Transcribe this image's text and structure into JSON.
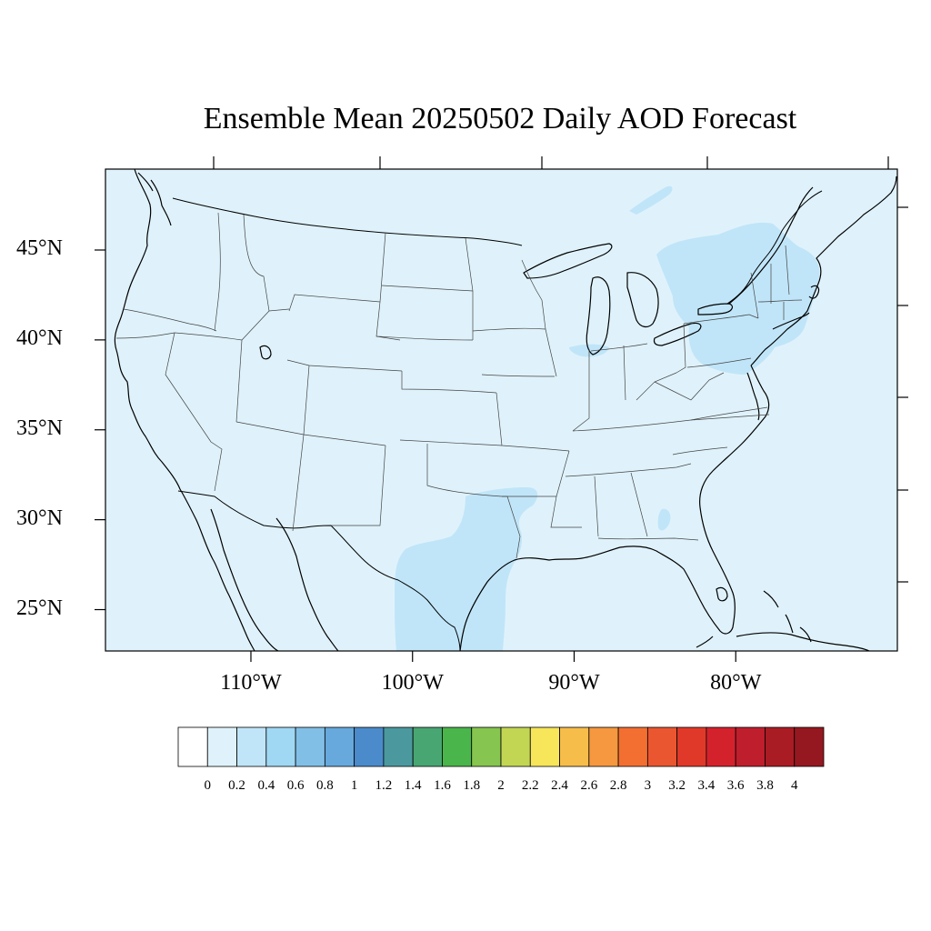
{
  "title": "Ensemble Mean 20250502 Daily AOD Forecast",
  "map": {
    "region": "Contiguous United States",
    "lon_range": [
      -119,
      -70
    ],
    "lat_range": [
      22.7,
      49.5
    ],
    "lat_labels": [
      "45°N",
      "40°N",
      "35°N",
      "30°N",
      "25°N"
    ],
    "lat_values": [
      45,
      40,
      35,
      30,
      25
    ],
    "lon_labels": [
      "110°W",
      "100°W",
      "90°W",
      "80°W"
    ],
    "lon_values": [
      -110,
      -100,
      -90,
      -80
    ],
    "background_color": "#dff2fb",
    "ocean_color": "#dff2fb",
    "enhanced_color": "#c0e5f8",
    "coastline_color": "#000000",
    "state_border_color": "#444444"
  },
  "colorbar": {
    "levels": [
      "0",
      "0.2",
      "0.4",
      "0.6",
      "0.8",
      "1",
      "1.2",
      "1.4",
      "1.6",
      "1.8",
      "2",
      "2.2",
      "2.4",
      "2.6",
      "2.8",
      "3",
      "3.2",
      "3.4",
      "3.6",
      "3.8",
      "4"
    ],
    "colors": [
      "#ffffff",
      "#dff2fb",
      "#c0e5f8",
      "#a0d8f4",
      "#82bfe6",
      "#67a9dc",
      "#4b8bcb",
      "#4b999f",
      "#48a673",
      "#4ab54b",
      "#86c54f",
      "#c3d654",
      "#f7e55a",
      "#f7bd4b",
      "#f5983f",
      "#f26f31",
      "#ea5630",
      "#e0392a",
      "#d4222d",
      "#bf1e2d",
      "#aa1c24",
      "#951820"
    ]
  },
  "chart_data": {
    "type": "heatmap",
    "title": "Ensemble Mean 20250502 Daily AOD Forecast",
    "xlabel": "",
    "ylabel": "",
    "x_ticks": [
      "110°W",
      "100°W",
      "90°W",
      "80°W"
    ],
    "y_ticks": [
      "45°N",
      "40°N",
      "35°N",
      "30°N",
      "25°N"
    ],
    "xlim": [
      -119,
      -70
    ],
    "ylim": [
      22.7,
      49.5
    ],
    "colorbar_levels": [
      0,
      0.2,
      0.4,
      0.6,
      0.8,
      1,
      1.2,
      1.4,
      1.6,
      1.8,
      2,
      2.2,
      2.4,
      2.6,
      2.8,
      3,
      3.2,
      3.4,
      3.6,
      3.8,
      4
    ],
    "field_summary": [
      {
        "region": "most of domain",
        "aod_range": [
          0,
          0.2
        ]
      },
      {
        "region": "Northeast US / Great Lakes",
        "aod_range": [
          0.2,
          0.4
        ]
      },
      {
        "region": "Texas / Gulf coast",
        "aod_range": [
          0.2,
          0.4
        ]
      },
      {
        "region": "Southern Quebec",
        "aod_range": [
          0.2,
          0.4
        ]
      }
    ]
  }
}
